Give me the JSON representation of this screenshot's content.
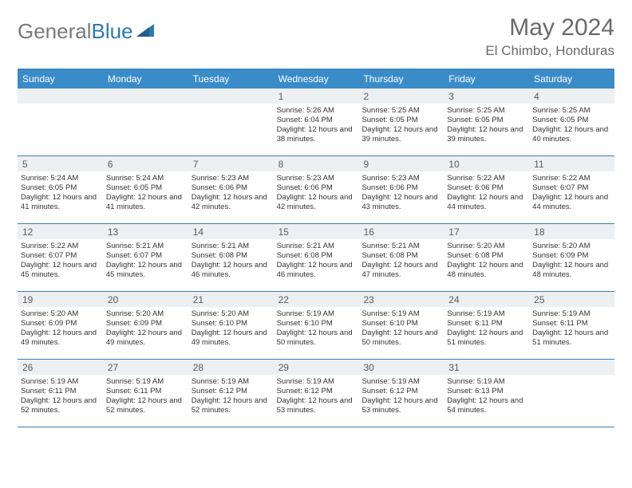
{
  "logo": {
    "general": "General",
    "blue": "Blue"
  },
  "title": "May 2024",
  "location": "El Chimbo, Honduras",
  "dayHeaders": [
    "Sunday",
    "Monday",
    "Tuesday",
    "Wednesday",
    "Thursday",
    "Friday",
    "Saturday"
  ],
  "colors": {
    "headerBar": "#3a8cc9",
    "rowBorder": "#3a7fb5",
    "dayNumBg": "#edf0f3",
    "text": "#333333",
    "titleText": "#6a6a6a",
    "logoGrey": "#7a7a7a",
    "logoBlue": "#2a7ab0"
  },
  "weeks": [
    [
      {
        "empty": true
      },
      {
        "empty": true
      },
      {
        "empty": true
      },
      {
        "n": "1",
        "sr": "5:26 AM",
        "ss": "6:04 PM",
        "dh": "12",
        "dm": "38"
      },
      {
        "n": "2",
        "sr": "5:25 AM",
        "ss": "6:05 PM",
        "dh": "12",
        "dm": "39"
      },
      {
        "n": "3",
        "sr": "5:25 AM",
        "ss": "6:05 PM",
        "dh": "12",
        "dm": "39"
      },
      {
        "n": "4",
        "sr": "5:25 AM",
        "ss": "6:05 PM",
        "dh": "12",
        "dm": "40"
      }
    ],
    [
      {
        "n": "5",
        "sr": "5:24 AM",
        "ss": "6:05 PM",
        "dh": "12",
        "dm": "41"
      },
      {
        "n": "6",
        "sr": "5:24 AM",
        "ss": "6:05 PM",
        "dh": "12",
        "dm": "41"
      },
      {
        "n": "7",
        "sr": "5:23 AM",
        "ss": "6:06 PM",
        "dh": "12",
        "dm": "42"
      },
      {
        "n": "8",
        "sr": "5:23 AM",
        "ss": "6:06 PM",
        "dh": "12",
        "dm": "42"
      },
      {
        "n": "9",
        "sr": "5:23 AM",
        "ss": "6:06 PM",
        "dh": "12",
        "dm": "43"
      },
      {
        "n": "10",
        "sr": "5:22 AM",
        "ss": "6:06 PM",
        "dh": "12",
        "dm": "44"
      },
      {
        "n": "11",
        "sr": "5:22 AM",
        "ss": "6:07 PM",
        "dh": "12",
        "dm": "44"
      }
    ],
    [
      {
        "n": "12",
        "sr": "5:22 AM",
        "ss": "6:07 PM",
        "dh": "12",
        "dm": "45"
      },
      {
        "n": "13",
        "sr": "5:21 AM",
        "ss": "6:07 PM",
        "dh": "12",
        "dm": "45"
      },
      {
        "n": "14",
        "sr": "5:21 AM",
        "ss": "6:08 PM",
        "dh": "12",
        "dm": "46"
      },
      {
        "n": "15",
        "sr": "5:21 AM",
        "ss": "6:08 PM",
        "dh": "12",
        "dm": "46"
      },
      {
        "n": "16",
        "sr": "5:21 AM",
        "ss": "6:08 PM",
        "dh": "12",
        "dm": "47"
      },
      {
        "n": "17",
        "sr": "5:20 AM",
        "ss": "6:08 PM",
        "dh": "12",
        "dm": "48"
      },
      {
        "n": "18",
        "sr": "5:20 AM",
        "ss": "6:09 PM",
        "dh": "12",
        "dm": "48"
      }
    ],
    [
      {
        "n": "19",
        "sr": "5:20 AM",
        "ss": "6:09 PM",
        "dh": "12",
        "dm": "49"
      },
      {
        "n": "20",
        "sr": "5:20 AM",
        "ss": "6:09 PM",
        "dh": "12",
        "dm": "49"
      },
      {
        "n": "21",
        "sr": "5:20 AM",
        "ss": "6:10 PM",
        "dh": "12",
        "dm": "49"
      },
      {
        "n": "22",
        "sr": "5:19 AM",
        "ss": "6:10 PM",
        "dh": "12",
        "dm": "50"
      },
      {
        "n": "23",
        "sr": "5:19 AM",
        "ss": "6:10 PM",
        "dh": "12",
        "dm": "50"
      },
      {
        "n": "24",
        "sr": "5:19 AM",
        "ss": "6:11 PM",
        "dh": "12",
        "dm": "51"
      },
      {
        "n": "25",
        "sr": "5:19 AM",
        "ss": "6:11 PM",
        "dh": "12",
        "dm": "51"
      }
    ],
    [
      {
        "n": "26",
        "sr": "5:19 AM",
        "ss": "6:11 PM",
        "dh": "12",
        "dm": "52"
      },
      {
        "n": "27",
        "sr": "5:19 AM",
        "ss": "6:11 PM",
        "dh": "12",
        "dm": "52"
      },
      {
        "n": "28",
        "sr": "5:19 AM",
        "ss": "6:12 PM",
        "dh": "12",
        "dm": "52"
      },
      {
        "n": "29",
        "sr": "5:19 AM",
        "ss": "6:12 PM",
        "dh": "12",
        "dm": "53"
      },
      {
        "n": "30",
        "sr": "5:19 AM",
        "ss": "6:12 PM",
        "dh": "12",
        "dm": "53"
      },
      {
        "n": "31",
        "sr": "5:19 AM",
        "ss": "6:13 PM",
        "dh": "12",
        "dm": "54"
      },
      {
        "empty": true
      }
    ]
  ],
  "labels": {
    "sunrise": "Sunrise:",
    "sunset": "Sunset:",
    "daylightPrefix": "Daylight:",
    "hoursWord": "hours",
    "andWord": "and",
    "minutesWord": "minutes."
  }
}
